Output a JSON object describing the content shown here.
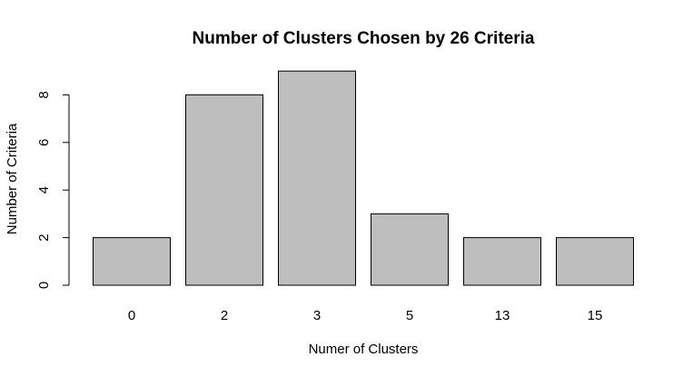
{
  "chart_data": {
    "type": "bar",
    "title": "Number of Clusters Chosen by 26 Criteria",
    "xlabel": "Numer of Clusters",
    "ylabel": "Number of Criteria",
    "categories": [
      "0",
      "2",
      "3",
      "5",
      "13",
      "15"
    ],
    "values": [
      2,
      8,
      9,
      3,
      2,
      2
    ],
    "yticks": [
      0,
      2,
      4,
      6,
      8
    ],
    "ylim": [
      0,
      9.4
    ],
    "grid": false,
    "bar_color": "#bebebe",
    "bar_edge_color": "#000000"
  }
}
